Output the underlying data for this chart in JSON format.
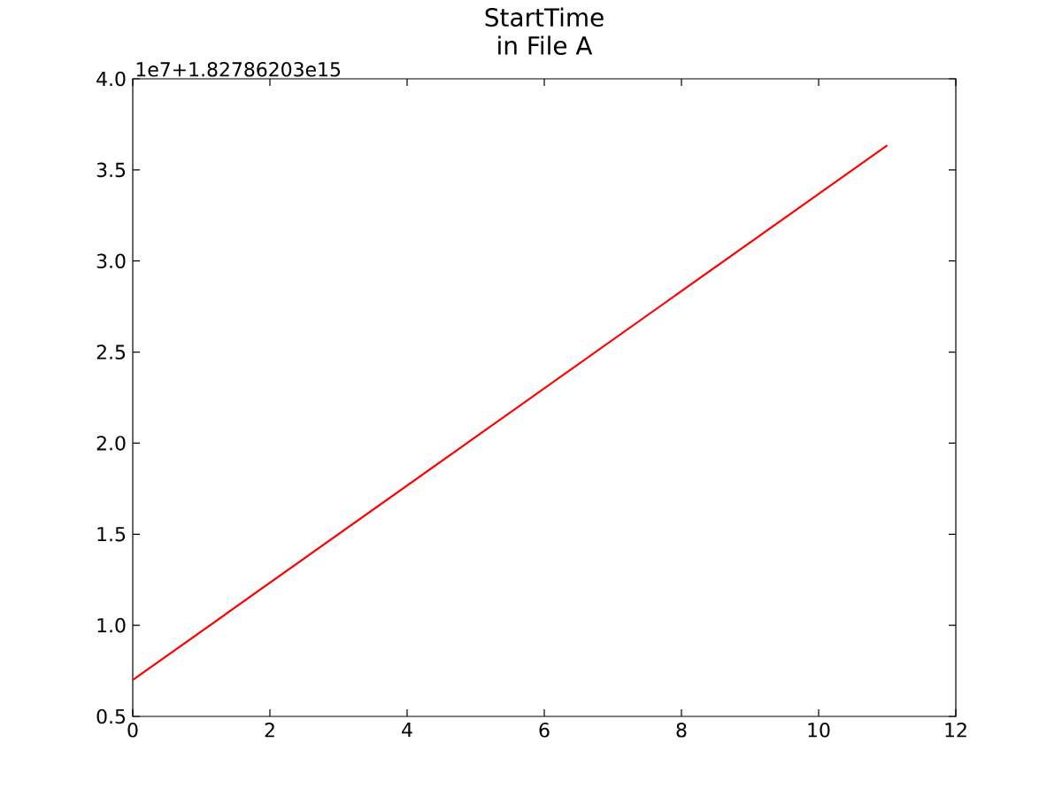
{
  "chart_data": {
    "type": "line",
    "title": "StartTime",
    "subtitle": "in File A",
    "annotations": [
      "1e7+1.82786203e15"
    ],
    "x": [
      0,
      11
    ],
    "series": [
      {
        "color": "#ff0000",
        "values": [
          0.7,
          3.635
        ]
      }
    ],
    "xlim": [
      0,
      12
    ],
    "xticks": [
      0,
      2,
      4,
      6,
      8,
      10,
      12
    ],
    "ylim": [
      0.5,
      4.0
    ],
    "yticks": [
      {
        "value": 0.5,
        "label": "0.5"
      },
      {
        "value": 1.0,
        "label": "1.0"
      },
      {
        "value": 1.5,
        "label": "1.5"
      },
      {
        "value": 2.0,
        "label": "2.0"
      },
      {
        "value": 2.5,
        "label": "2.5"
      },
      {
        "value": 3.0,
        "label": "3.0"
      },
      {
        "value": 3.5,
        "label": "3.5"
      },
      {
        "value": 4.0,
        "label": "4.0"
      }
    ],
    "line_style": "solid"
  }
}
